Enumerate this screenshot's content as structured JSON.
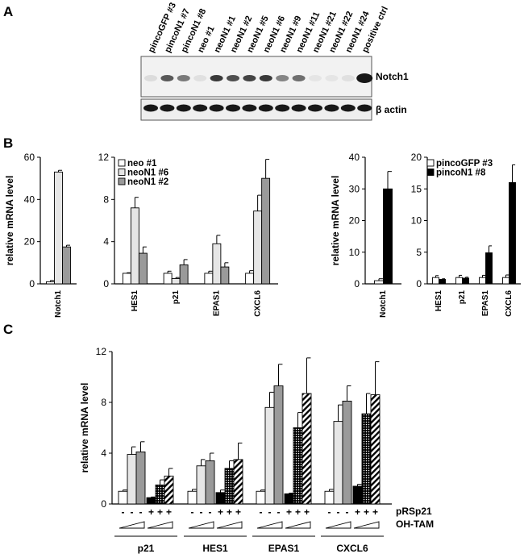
{
  "panel_labels": {
    "a": "A",
    "b": "B",
    "c": "C"
  },
  "blot": {
    "lanes": [
      "pincoGFP #3",
      "pincoN1 #7",
      "pincoN1 #8",
      "neo #1",
      "neoN1 #1",
      "neoN1 #2",
      "neoN1 #5",
      "neoN1 #6",
      "neoN1 #9",
      "neoN1 #11",
      "neoN1 #21",
      "neoN1 #22",
      "neoN1 #24",
      "positive ctrl"
    ],
    "notch1_label": "Notch1",
    "actin_label": "β actin",
    "notch1_intensity": [
      0.1,
      0.7,
      0.55,
      0.08,
      0.85,
      0.75,
      0.8,
      0.85,
      0.5,
      0.6,
      0.05,
      0.05,
      0.08,
      1.0
    ],
    "actin_intensity": [
      0.9,
      0.9,
      0.9,
      0.9,
      0.9,
      0.9,
      0.9,
      0.9,
      0.9,
      0.9,
      0.9,
      0.9,
      0.9,
      0.9
    ]
  },
  "colors": {
    "white": "#ffffff",
    "light": "#e6e6e6",
    "mid": "#9a9a9a",
    "black": "#000000"
  },
  "chart_data": [
    {
      "id": "b1",
      "type": "bar",
      "ylabel": "relative mRNA level",
      "ylim": [
        0,
        60
      ],
      "yticks": [
        0,
        20,
        40,
        60
      ],
      "categories": [
        "Notch1"
      ],
      "series": [
        {
          "name": "neo #1",
          "fill": "white",
          "values": [
            1
          ],
          "errors": [
            0.6
          ]
        },
        {
          "name": "neoN1 #6",
          "fill": "light",
          "values": [
            53
          ],
          "errors": [
            0.8
          ]
        },
        {
          "name": "neoN1 #2",
          "fill": "mid",
          "values": [
            17.5
          ],
          "errors": [
            0.8
          ]
        }
      ]
    },
    {
      "id": "b2",
      "type": "bar",
      "ylabel": "",
      "ylim": [
        0,
        12
      ],
      "yticks": [
        0,
        4,
        8,
        12
      ],
      "categories": [
        "HES1",
        "p21",
        "EPAS1",
        "CXCL6"
      ],
      "legend": [
        "neo #1",
        "neoN1 #6",
        "neoN1 #2"
      ],
      "series": [
        {
          "name": "neo #1",
          "fill": "white",
          "values": [
            1,
            1,
            1,
            1
          ],
          "errors": [
            0.05,
            0.2,
            0.2,
            0.25
          ]
        },
        {
          "name": "neoN1 #6",
          "fill": "light",
          "values": [
            7.2,
            0.5,
            3.8,
            6.9
          ],
          "errors": [
            1,
            0.1,
            0.8,
            1.5
          ]
        },
        {
          "name": "neoN1 #2",
          "fill": "mid",
          "values": [
            2.9,
            1.8,
            1.6,
            10
          ],
          "errors": [
            0.6,
            0.5,
            0.4,
            1.8
          ]
        }
      ]
    },
    {
      "id": "b3",
      "type": "bar",
      "ylabel": "relative mRNA level",
      "ylim": [
        0,
        40
      ],
      "yticks": [
        0,
        10,
        20,
        30,
        40
      ],
      "categories": [
        "Notch1"
      ],
      "series": [
        {
          "name": "pincoGFP #3",
          "fill": "white",
          "values": [
            1
          ],
          "errors": [
            0.6
          ]
        },
        {
          "name": "pincoN1 #8",
          "fill": "black",
          "values": [
            30
          ],
          "errors": [
            5.5
          ]
        }
      ]
    },
    {
      "id": "b4",
      "type": "bar",
      "ylabel": "",
      "ylim": [
        0,
        20
      ],
      "yticks": [
        0,
        5,
        10,
        15,
        20
      ],
      "categories": [
        "HES1",
        "p21",
        "EPAS1",
        "CXCL6"
      ],
      "legend": [
        "pincoGFP #3",
        "pincoN1 #8"
      ],
      "series": [
        {
          "name": "pincoGFP #3",
          "fill": "white",
          "values": [
            1,
            1,
            1,
            1
          ],
          "errors": [
            0.3,
            0.35,
            0.35,
            0.4
          ]
        },
        {
          "name": "pincoN1 #8",
          "fill": "black",
          "values": [
            0.7,
            0.9,
            4.9,
            16
          ],
          "errors": [
            0.1,
            0.15,
            1.1,
            2.8
          ]
        }
      ]
    },
    {
      "id": "c",
      "type": "bar",
      "ylabel": "relative mRNA level",
      "ylim": [
        0,
        12
      ],
      "yticks": [
        0,
        4,
        8,
        12
      ],
      "categories": [
        "p21",
        "HES1",
        "EPAS1",
        "CXCL6"
      ],
      "bar_fills": [
        "white",
        "light",
        "mid",
        "black",
        "dotted",
        "hatched"
      ],
      "values": [
        [
          1,
          3.9,
          4.1,
          0.5,
          1.5,
          2.2
        ],
        [
          1,
          3,
          3.4,
          0.9,
          2.8,
          3.5
        ],
        [
          1,
          7.6,
          9.3,
          0.8,
          6,
          8.7
        ],
        [
          1,
          6.5,
          8.1,
          1.4,
          7.1,
          8.6
        ]
      ],
      "errors": [
        [
          0.1,
          0.6,
          0.8,
          0.05,
          0.4,
          0.6
        ],
        [
          0.15,
          0.5,
          0.6,
          0.2,
          0.6,
          1.3
        ],
        [
          0.1,
          1.2,
          1.7,
          0.05,
          1.2,
          2.8
        ],
        [
          0.15,
          1.3,
          1.2,
          0.15,
          1.6,
          2.6
        ]
      ],
      "pRSp21_signs": [
        "-",
        "-",
        "-",
        "+",
        "+",
        "+"
      ],
      "row_labels": {
        "prs": "pRSp21",
        "tam": "OH-TAM"
      }
    }
  ]
}
